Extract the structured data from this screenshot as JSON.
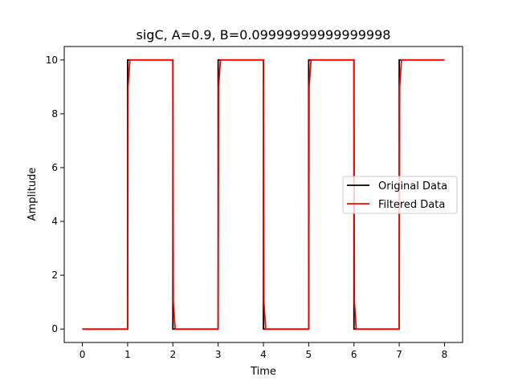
{
  "chart_data": {
    "type": "line",
    "title": "sigC, A=0.9, B=0.09999999999999998",
    "xlabel": "Time",
    "ylabel": "Amplitude",
    "xlim": [
      -0.4,
      8.4
    ],
    "ylim": [
      -0.5,
      10.5
    ],
    "xticks": [
      0,
      1,
      2,
      3,
      4,
      5,
      6,
      7,
      8
    ],
    "yticks": [
      0,
      2,
      4,
      6,
      8,
      10
    ],
    "grid": false,
    "legend_position": "center-right",
    "series": [
      {
        "name": "Original Data",
        "color": "#000000",
        "x": [
          0,
          1,
          1,
          2,
          2,
          3,
          3,
          4,
          4,
          5,
          5,
          6,
          6,
          7,
          7,
          8
        ],
        "y": [
          0,
          0,
          10,
          10,
          0,
          0,
          10,
          10,
          0,
          0,
          10,
          10,
          0,
          0,
          10,
          10
        ]
      },
      {
        "name": "Filtered Data",
        "color": "#ff0000",
        "x": [
          0,
          1,
          1.01,
          1.05,
          2,
          2.01,
          2.05,
          3,
          3.01,
          3.05,
          4,
          4.01,
          4.05,
          5,
          5.01,
          5.05,
          6,
          6.01,
          6.05,
          7,
          7.01,
          7.05,
          8
        ],
        "y": [
          0,
          0,
          9,
          10,
          10,
          1,
          0,
          0,
          9,
          10,
          10,
          1,
          0,
          0,
          9,
          10,
          10,
          1,
          0,
          0,
          9,
          10,
          10
        ]
      }
    ]
  }
}
